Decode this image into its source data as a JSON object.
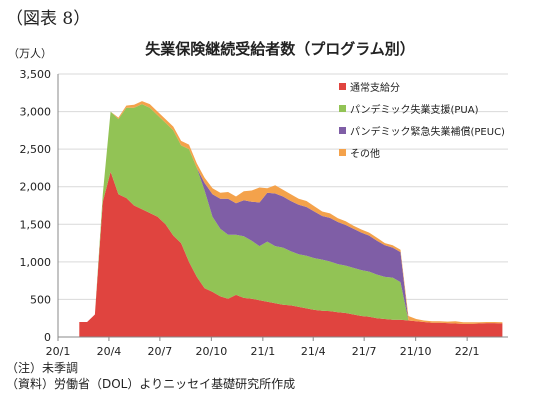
{
  "figure_label": "（図表 8）",
  "unit_label": "（万人）",
  "notes": [
    "（注）未季調",
    "（資料）労働省（DOL）よりニッセイ基礎研究所作成"
  ],
  "chart_data": {
    "type": "area",
    "stacked": true,
    "title": "失業保険継続受給者数（プログラム別）",
    "xlabel": "",
    "ylabel": "（万人）",
    "ylim": [
      0,
      3500
    ],
    "yticks": [
      0,
      500,
      1000,
      1500,
      2000,
      2500,
      3000,
      3500
    ],
    "ytick_labels": [
      "0",
      "500",
      "1,000",
      "1,500",
      "2,000",
      "2,500",
      "3,000",
      "3,500"
    ],
    "xlim": [
      "2020-01-01",
      "2022-03-15"
    ],
    "xticks": [
      "2020-01-01",
      "2020-04-01",
      "2020-07-01",
      "2020-10-01",
      "2021-01-01",
      "2021-04-01",
      "2021-07-01",
      "2021-10-01",
      "2022-01-01"
    ],
    "xtick_labels": [
      "20/1",
      "20/4",
      "20/7",
      "20/10",
      "21/1",
      "21/4",
      "21/7",
      "21/10",
      "22/1"
    ],
    "grid": true,
    "legend_position": "upper-right",
    "x": [
      "2020-02-08",
      "2020-02-22",
      "2020-03-07",
      "2020-03-21",
      "2020-04-04",
      "2020-04-18",
      "2020-05-02",
      "2020-05-16",
      "2020-05-30",
      "2020-06-13",
      "2020-06-27",
      "2020-07-11",
      "2020-07-25",
      "2020-08-08",
      "2020-08-22",
      "2020-09-05",
      "2020-09-19",
      "2020-10-03",
      "2020-10-17",
      "2020-10-31",
      "2020-11-14",
      "2020-11-28",
      "2020-12-12",
      "2020-12-26",
      "2021-01-09",
      "2021-01-23",
      "2021-02-06",
      "2021-02-20",
      "2021-03-06",
      "2021-03-20",
      "2021-04-03",
      "2021-04-17",
      "2021-05-01",
      "2021-05-15",
      "2021-05-29",
      "2021-06-12",
      "2021-06-26",
      "2021-07-10",
      "2021-07-24",
      "2021-08-07",
      "2021-08-21",
      "2021-09-04",
      "2021-09-18",
      "2021-10-02",
      "2021-10-16",
      "2021-10-30",
      "2021-11-13",
      "2021-11-27",
      "2021-12-11",
      "2021-12-25",
      "2022-01-08",
      "2022-01-22",
      "2022-02-05",
      "2022-02-19",
      "2022-03-05"
    ],
    "series": [
      {
        "name": "通常支給分",
        "color": "#e0443f",
        "values": [
          200,
          200,
          300,
          1800,
          2200,
          1900,
          1850,
          1750,
          1700,
          1650,
          1600,
          1500,
          1350,
          1250,
          1000,
          800,
          650,
          600,
          540,
          510,
          560,
          520,
          510,
          490,
          470,
          450,
          430,
          420,
          400,
          380,
          360,
          350,
          345,
          330,
          320,
          300,
          280,
          270,
          250,
          240,
          230,
          230,
          220,
          210,
          200,
          190,
          190,
          185,
          180,
          175,
          175,
          180,
          185,
          185,
          180
        ]
      },
      {
        "name": "パンデミック失業支援(PUA)",
        "color": "#92c355",
        "values": [
          0,
          0,
          0,
          100,
          800,
          1000,
          1200,
          1300,
          1400,
          1400,
          1350,
          1350,
          1400,
          1300,
          1500,
          1450,
          1300,
          1000,
          900,
          850,
          800,
          820,
          770,
          720,
          800,
          760,
          760,
          720,
          700,
          700,
          690,
          680,
          660,
          640,
          630,
          620,
          610,
          600,
          580,
          560,
          560,
          500,
          0,
          0,
          0,
          0,
          0,
          0,
          0,
          0,
          0,
          0,
          0,
          0,
          0
        ]
      },
      {
        "name": "パンデミック緊急失業補償(PEUC)",
        "color": "#7f5ea6",
        "values": [
          0,
          0,
          0,
          0,
          0,
          0,
          0,
          0,
          0,
          0,
          0,
          0,
          0,
          0,
          0,
          0,
          100,
          300,
          400,
          480,
          420,
          480,
          520,
          580,
          650,
          700,
          680,
          670,
          660,
          650,
          620,
          580,
          580,
          560,
          540,
          520,
          500,
          480,
          450,
          420,
          400,
          400,
          0,
          0,
          0,
          0,
          0,
          0,
          0,
          0,
          0,
          0,
          0,
          0,
          0
        ]
      },
      {
        "name": "その他",
        "color": "#f4a24b",
        "values": [
          0,
          0,
          0,
          0,
          0,
          20,
          30,
          40,
          40,
          50,
          50,
          50,
          50,
          60,
          60,
          60,
          70,
          80,
          80,
          90,
          90,
          120,
          150,
          200,
          60,
          110,
          90,
          90,
          80,
          80,
          70,
          60,
          60,
          50,
          50,
          40,
          40,
          40,
          40,
          30,
          30,
          30,
          60,
          30,
          20,
          20,
          20,
          20,
          30,
          20,
          20,
          15,
          15,
          15,
          15
        ]
      }
    ]
  }
}
